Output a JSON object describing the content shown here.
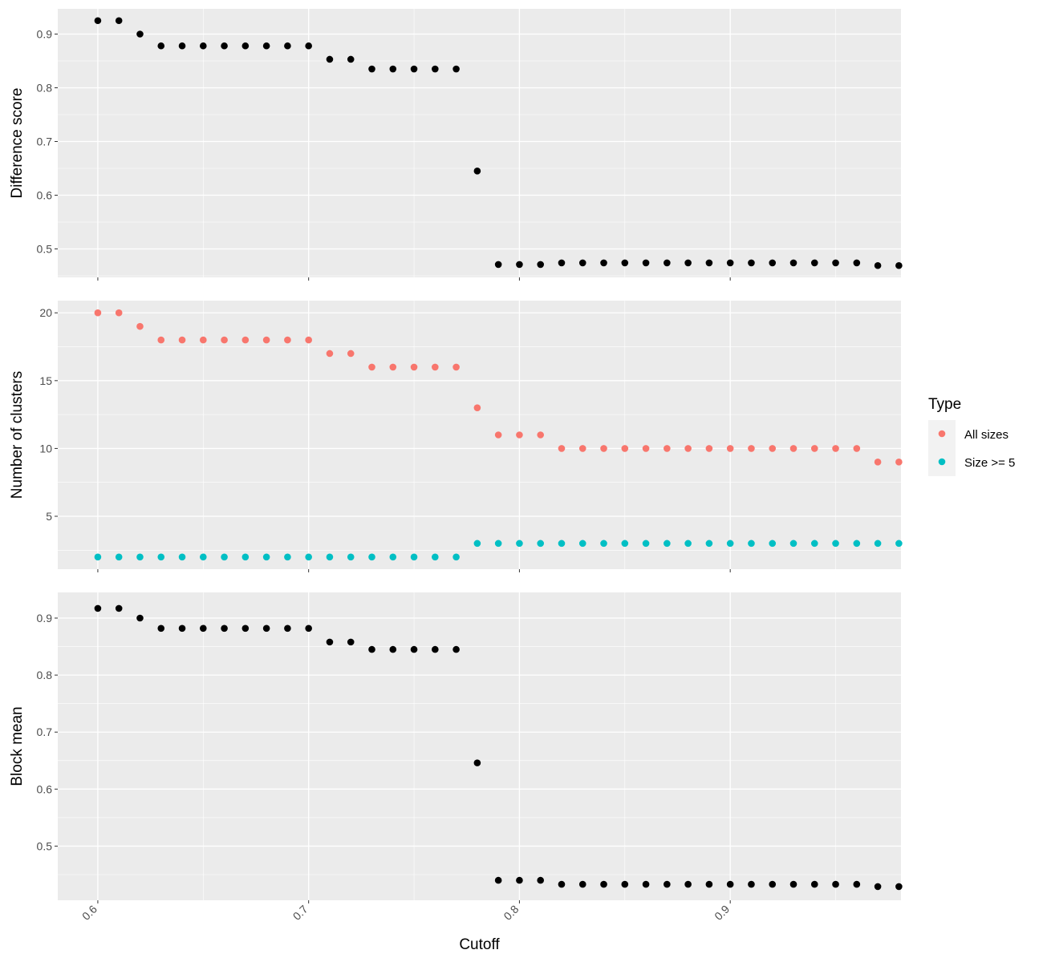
{
  "chart_data": [
    {
      "type": "scatter",
      "ylabel": "Difference score",
      "xlim": [
        0.581,
        0.981
      ],
      "ylim": [
        0.447,
        0.947
      ],
      "y_ticks": [
        0.5,
        0.6,
        0.7,
        0.8,
        0.9
      ],
      "y_tick_labels": [
        "0.5",
        "0.6",
        "0.7",
        "0.8",
        "0.9"
      ],
      "series": [
        {
          "color": "#000000",
          "x": [
            0.6,
            0.61,
            0.62,
            0.63,
            0.64,
            0.65,
            0.66,
            0.67,
            0.68,
            0.69,
            0.7,
            0.71,
            0.72,
            0.73,
            0.74,
            0.75,
            0.76,
            0.77,
            0.78,
            0.79,
            0.8,
            0.81,
            0.82,
            0.83,
            0.84,
            0.85,
            0.86,
            0.87,
            0.88,
            0.89,
            0.9,
            0.91,
            0.92,
            0.93,
            0.94,
            0.95,
            0.96,
            0.97,
            0.98
          ],
          "y": [
            0.925,
            0.925,
            0.9,
            0.878,
            0.878,
            0.878,
            0.878,
            0.878,
            0.878,
            0.878,
            0.878,
            0.853,
            0.853,
            0.835,
            0.835,
            0.835,
            0.835,
            0.835,
            0.645,
            0.471,
            0.471,
            0.471,
            0.474,
            0.474,
            0.474,
            0.474,
            0.474,
            0.474,
            0.474,
            0.474,
            0.474,
            0.474,
            0.474,
            0.474,
            0.474,
            0.474,
            0.474,
            0.469,
            0.469
          ]
        }
      ]
    },
    {
      "type": "scatter",
      "ylabel": "Number of clusters",
      "xlim": [
        0.581,
        0.981
      ],
      "ylim": [
        1.1,
        20.9
      ],
      "y_ticks": [
        5,
        10,
        15,
        20
      ],
      "y_tick_labels": [
        "5",
        "10",
        "15",
        "20"
      ],
      "legend": {
        "title": "Type",
        "position": "right"
      },
      "series": [
        {
          "name": "All sizes",
          "color": "#F8766D",
          "x": [
            0.6,
            0.61,
            0.62,
            0.63,
            0.64,
            0.65,
            0.66,
            0.67,
            0.68,
            0.69,
            0.7,
            0.71,
            0.72,
            0.73,
            0.74,
            0.75,
            0.76,
            0.77,
            0.78,
            0.79,
            0.8,
            0.81,
            0.82,
            0.83,
            0.84,
            0.85,
            0.86,
            0.87,
            0.88,
            0.89,
            0.9,
            0.91,
            0.92,
            0.93,
            0.94,
            0.95,
            0.96,
            0.97,
            0.98
          ],
          "y": [
            20,
            20,
            19,
            18,
            18,
            18,
            18,
            18,
            18,
            18,
            18,
            17,
            17,
            16,
            16,
            16,
            16,
            16,
            13,
            11,
            11,
            11,
            10,
            10,
            10,
            10,
            10,
            10,
            10,
            10,
            10,
            10,
            10,
            10,
            10,
            10,
            10,
            9,
            9
          ]
        },
        {
          "name": "Size >= 5",
          "color": "#00BFC4",
          "x": [
            0.6,
            0.61,
            0.62,
            0.63,
            0.64,
            0.65,
            0.66,
            0.67,
            0.68,
            0.69,
            0.7,
            0.71,
            0.72,
            0.73,
            0.74,
            0.75,
            0.76,
            0.77,
            0.78,
            0.79,
            0.8,
            0.81,
            0.82,
            0.83,
            0.84,
            0.85,
            0.86,
            0.87,
            0.88,
            0.89,
            0.9,
            0.91,
            0.92,
            0.93,
            0.94,
            0.95,
            0.96,
            0.97,
            0.98
          ],
          "y": [
            2,
            2,
            2,
            2,
            2,
            2,
            2,
            2,
            2,
            2,
            2,
            2,
            2,
            2,
            2,
            2,
            2,
            2,
            3,
            3,
            3,
            3,
            3,
            3,
            3,
            3,
            3,
            3,
            3,
            3,
            3,
            3,
            3,
            3,
            3,
            3,
            3,
            3,
            3
          ]
        }
      ]
    },
    {
      "type": "scatter",
      "ylabel": "Block mean",
      "xlabel": "Cutoff",
      "xlim": [
        0.581,
        0.981
      ],
      "ylim": [
        0.405,
        0.945
      ],
      "x_ticks": [
        0.6,
        0.7,
        0.8,
        0.9
      ],
      "x_tick_labels": [
        "0.6",
        "0.7",
        "0.8",
        "0.9"
      ],
      "y_ticks": [
        0.5,
        0.6,
        0.7,
        0.8,
        0.9
      ],
      "y_tick_labels": [
        "0.5",
        "0.6",
        "0.7",
        "0.8",
        "0.9"
      ],
      "series": [
        {
          "color": "#000000",
          "x": [
            0.6,
            0.61,
            0.62,
            0.63,
            0.64,
            0.65,
            0.66,
            0.67,
            0.68,
            0.69,
            0.7,
            0.71,
            0.72,
            0.73,
            0.74,
            0.75,
            0.76,
            0.77,
            0.78,
            0.79,
            0.8,
            0.81,
            0.82,
            0.83,
            0.84,
            0.85,
            0.86,
            0.87,
            0.88,
            0.89,
            0.9,
            0.91,
            0.92,
            0.93,
            0.94,
            0.95,
            0.96,
            0.97,
            0.98
          ],
          "y": [
            0.917,
            0.917,
            0.9,
            0.882,
            0.882,
            0.882,
            0.882,
            0.882,
            0.882,
            0.882,
            0.882,
            0.858,
            0.858,
            0.845,
            0.845,
            0.845,
            0.845,
            0.845,
            0.646,
            0.44,
            0.44,
            0.44,
            0.433,
            0.433,
            0.433,
            0.433,
            0.433,
            0.433,
            0.433,
            0.433,
            0.433,
            0.433,
            0.433,
            0.433,
            0.433,
            0.433,
            0.433,
            0.429,
            0.429
          ]
        }
      ]
    }
  ]
}
